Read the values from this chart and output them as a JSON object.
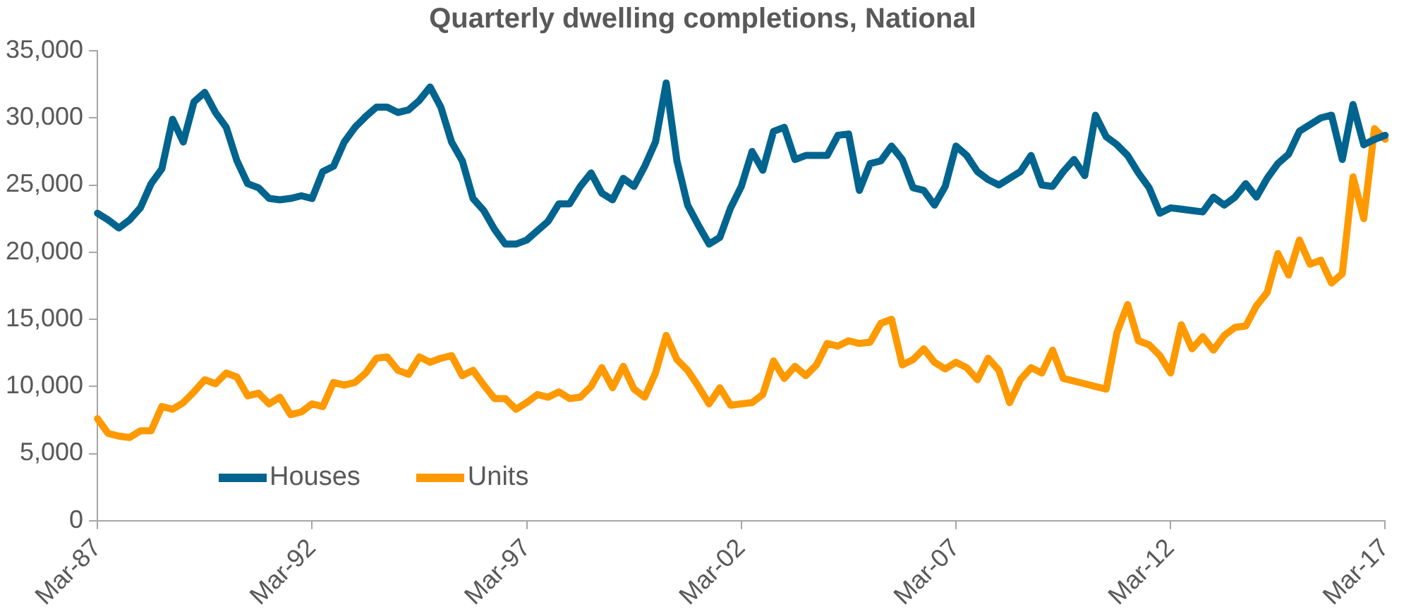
{
  "chart_data": {
    "type": "line",
    "title": "Quarterly dwelling completions, National",
    "categories": [
      "Mar-87",
      null,
      null,
      null,
      null,
      null,
      null,
      null,
      null,
      null,
      null,
      null,
      null,
      null,
      null,
      null,
      null,
      null,
      null,
      null,
      "Mar-92",
      null,
      null,
      null,
      null,
      null,
      null,
      null,
      null,
      null,
      null,
      null,
      null,
      null,
      null,
      null,
      null,
      null,
      null,
      null,
      "Mar-97",
      null,
      null,
      null,
      null,
      null,
      null,
      null,
      null,
      null,
      null,
      null,
      null,
      null,
      null,
      null,
      null,
      null,
      null,
      null,
      "Mar-02",
      null,
      null,
      null,
      null,
      null,
      null,
      null,
      null,
      null,
      null,
      null,
      null,
      null,
      null,
      null,
      null,
      null,
      null,
      null,
      "Mar-07",
      null,
      null,
      null,
      null,
      null,
      null,
      null,
      null,
      null,
      null,
      null,
      null,
      null,
      null,
      null,
      null,
      null,
      null,
      null,
      "Mar-12",
      null,
      null,
      null,
      null,
      null,
      null,
      null,
      null,
      null,
      null,
      null,
      null,
      null,
      null,
      null,
      null,
      null,
      null,
      null,
      "Mar-17"
    ],
    "series": [
      {
        "name": "Houses",
        "color": "#00648f",
        "values": [
          22900,
          22400,
          21800,
          22400,
          23300,
          25100,
          26200,
          29900,
          28200,
          31200,
          31900,
          30400,
          29300,
          26800,
          25100,
          24800,
          24000,
          23900,
          24000,
          24200,
          24000,
          26000,
          26400,
          28200,
          29300,
          30100,
          30800,
          30800,
          30400,
          30600,
          31300,
          32300,
          30800,
          28200,
          26800,
          24000,
          23100,
          21700,
          20600,
          20600,
          20900,
          21600,
          22300,
          23600,
          23600,
          24900,
          25900,
          24400,
          23900,
          25500,
          24900,
          26400,
          28200,
          32600,
          26800,
          23500,
          22000,
          20600,
          21100,
          23300,
          24900,
          27500,
          26100,
          29000,
          29300,
          26900,
          27200,
          27200,
          27200,
          28700,
          28800,
          24600,
          26600,
          26800,
          27900,
          26900,
          24800,
          24600,
          23500,
          24900,
          27900,
          27200,
          26000,
          25400,
          25000,
          25500,
          26000,
          27200,
          25000,
          24900,
          26000,
          26900,
          25700,
          30200,
          28600,
          28000,
          27200,
          25900,
          24800,
          22900,
          23300,
          23200,
          23100,
          23000,
          24100,
          23500,
          24100,
          25100,
          24100,
          25500,
          26600,
          27300,
          29000,
          29500,
          30000,
          30200,
          26900,
          31000,
          28000,
          28400,
          28700
        ]
      },
      {
        "name": "Units",
        "color": "#ff9900",
        "values": [
          7600,
          6500,
          6300,
          6200,
          6700,
          6700,
          8500,
          8300,
          8800,
          9600,
          10500,
          10200,
          11000,
          10700,
          9300,
          9500,
          8700,
          9200,
          7900,
          8100,
          8700,
          8500,
          10300,
          10100,
          10300,
          11000,
          12100,
          12200,
          11200,
          10900,
          12200,
          11800,
          12100,
          12300,
          10800,
          11200,
          10100,
          9100,
          9100,
          8300,
          8800,
          9400,
          9200,
          9600,
          9100,
          9200,
          10000,
          11400,
          9900,
          11500,
          9800,
          9200,
          11000,
          13800,
          12000,
          11200,
          10000,
          8700,
          9900,
          8600,
          8700,
          8800,
          9400,
          11900,
          10600,
          11500,
          10800,
          11600,
          13200,
          13000,
          13400,
          13200,
          13300,
          14700,
          15000,
          11600,
          12000,
          12800,
          11800,
          11300,
          11800,
          11400,
          10500,
          12100,
          11200,
          8800,
          10500,
          11400,
          11000,
          12700,
          10600,
          10400,
          10200,
          10000,
          9800,
          14000,
          16100,
          13400,
          13100,
          12300,
          11000,
          14600,
          12800,
          13700,
          12700,
          13800,
          14400,
          14500,
          16000,
          17000,
          19900,
          18300,
          20900,
          19100,
          19400,
          17700,
          18400,
          25600,
          22500,
          29200,
          28400
        ]
      }
    ],
    "ylim": [
      0,
      35000
    ],
    "yticks": [
      0,
      {
        "value": 5000,
        "label": "5,000"
      },
      {
        "value": 10000,
        "label": "10,000"
      },
      {
        "value": 15000,
        "label": "15,000"
      },
      {
        "value": 20000,
        "label": "20,000"
      },
      {
        "value": 25000,
        "label": "25,000"
      },
      {
        "value": 30000,
        "label": "30,000"
      },
      {
        "value": 35000,
        "label": "35,000"
      }
    ],
    "grid": false,
    "legend": "bottom left",
    "marker": "none",
    "line_style": "solid"
  }
}
